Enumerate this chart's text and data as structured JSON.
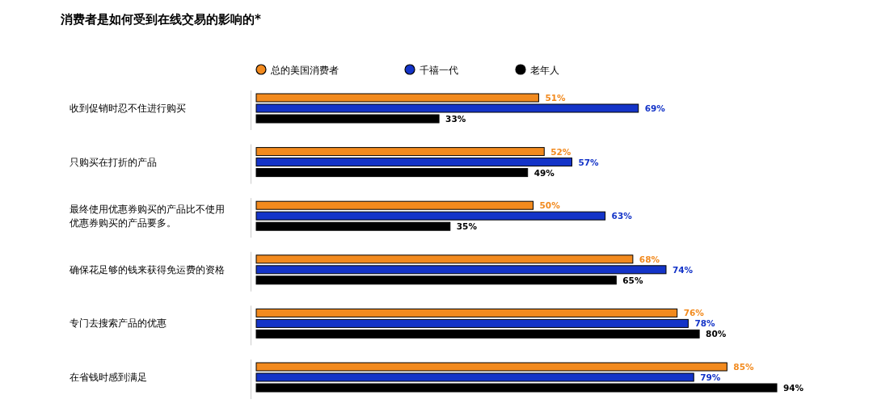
{
  "chart_data": {
    "type": "bar",
    "orientation": "horizontal",
    "title": "消费者是如何受到在线交易的影响的*",
    "categories": [
      "收到促销时忍不住进行购买",
      "只购买在打折的产品",
      "最终使用优惠券购买的产品比不使用优惠券购买的产品要多。",
      "确保花足够的钱来获得免运费的资格",
      "专门去搜索产品的优惠",
      "在省钱时感到满足"
    ],
    "legend": "top",
    "tick_labels": "y",
    "series": [
      {
        "name": "总的美国消费者",
        "color": "#f28a1e",
        "values": [
          51,
          52,
          50,
          68,
          76,
          85
        ],
        "value_labels": [
          "51%",
          "52%",
          "50%",
          "68%",
          "76%",
          "85%"
        ]
      },
      {
        "name": "千禧一代",
        "color": "#1434c8",
        "values": [
          69,
          57,
          63,
          74,
          78,
          79
        ],
        "value_labels": [
          "69%",
          "57%",
          "63%",
          "74%",
          "78%",
          "79%"
        ]
      },
      {
        "name": "老年人",
        "color": "#000000",
        "values": [
          33,
          49,
          35,
          65,
          80,
          94
        ],
        "value_labels": [
          "33%",
          "49%",
          "35%",
          "65%",
          "80%",
          "94%"
        ]
      }
    ]
  }
}
